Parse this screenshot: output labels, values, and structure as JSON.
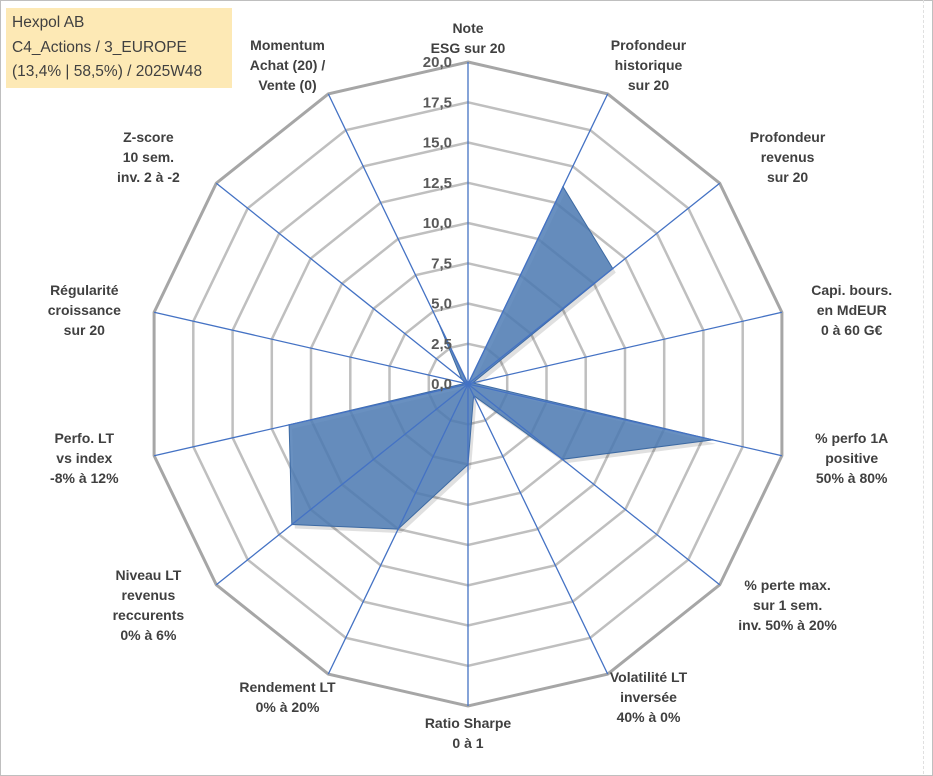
{
  "info_box": {
    "company": "Hexpol AB",
    "portfolio": "C4_Actions / 3_EUROPE",
    "stats": "(13,4% | 58,5%) / 2025W48"
  },
  "chart_data": {
    "type": "radar",
    "title": "",
    "rmin": 0,
    "rmax": 20,
    "tick_step": 2.5,
    "ticks": [
      "0,0",
      "2,5",
      "5,0",
      "7,5",
      "10,0",
      "12,5",
      "15,0",
      "17,5",
      "20,0"
    ],
    "categories": [
      [
        "Note",
        "ESG sur 20"
      ],
      [
        "Profondeur",
        "historique",
        "sur 20"
      ],
      [
        "Profondeur",
        "revenus",
        "sur 20"
      ],
      [
        "Capi. bours.",
        "en MdEUR",
        "0 à 60 G€"
      ],
      [
        "% perfo 1A",
        "positive",
        "50% à 80%"
      ],
      [
        "% perte max.",
        "sur 1 sem.",
        "inv. 50% à 20%"
      ],
      [
        "Volatilité LT",
        "inversée",
        "40% à 0%"
      ],
      [
        "Ratio Sharpe",
        "0 à 1"
      ],
      [
        "Rendement LT",
        "0% à 20%"
      ],
      [
        "Niveau LT",
        "revenus",
        "reccurents",
        "0% à 6%"
      ],
      [
        "Perfo. LT",
        "vs index",
        "-8% à 12%"
      ],
      [
        "Régularité",
        "croissance",
        "sur 20"
      ],
      [
        "Z-score",
        "10 sem.",
        "inv. 2 à -2"
      ],
      [
        "Momentum",
        "Achat (20) /",
        "Vente (0)"
      ]
    ],
    "series": [
      {
        "name": "Hexpol AB",
        "color": "#4f7cb5",
        "values": [
          0,
          13.6,
          11.5,
          0.3,
          15.6,
          7.5,
          0.8,
          5.0,
          10.0,
          14.0,
          11.4,
          0.2,
          0.5,
          4.3
        ]
      }
    ],
    "colors": {
      "axis": "#4472c4",
      "grid": "#bfbfbf",
      "outer_ring": "#a6a6a6"
    }
  }
}
